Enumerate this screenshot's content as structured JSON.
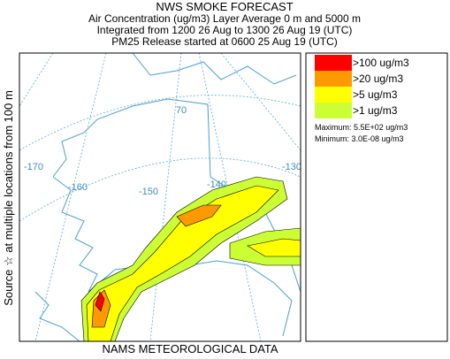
{
  "header": {
    "title": "NWS SMOKE FORECAST",
    "lines": [
      "Air Concentration (ug/m3) Layer Average    0 m and  5000 m",
      "Integrated from 1200 26 Aug to 1300 26 Aug 19 (UTC)",
      "PM25 Release started at 0600 25 Aug 19 (UTC)"
    ]
  },
  "side_label": "Source ☆   at multiple locations    from   100 m",
  "footer": "NAMS METEOROLOGICAL DATA",
  "legend": {
    "items": [
      {
        "label": ">100 ug/m3",
        "color": "#ff0000"
      },
      {
        "label": ">20 ug/m3",
        "color": "#ff9900"
      },
      {
        "label": ">5 ug/m3",
        "color": "#ffff00"
      },
      {
        "label": ">1 ug/m3",
        "color": "#ccff33"
      }
    ],
    "maximum": "Maximum: 5.5E+02 ug/m3",
    "minimum": "Minimum: 3.0E-08 ug/m3"
  },
  "map": {
    "labels": [
      "-170",
      "-160",
      "-150",
      "-140",
      "-130",
      "70"
    ]
  }
}
